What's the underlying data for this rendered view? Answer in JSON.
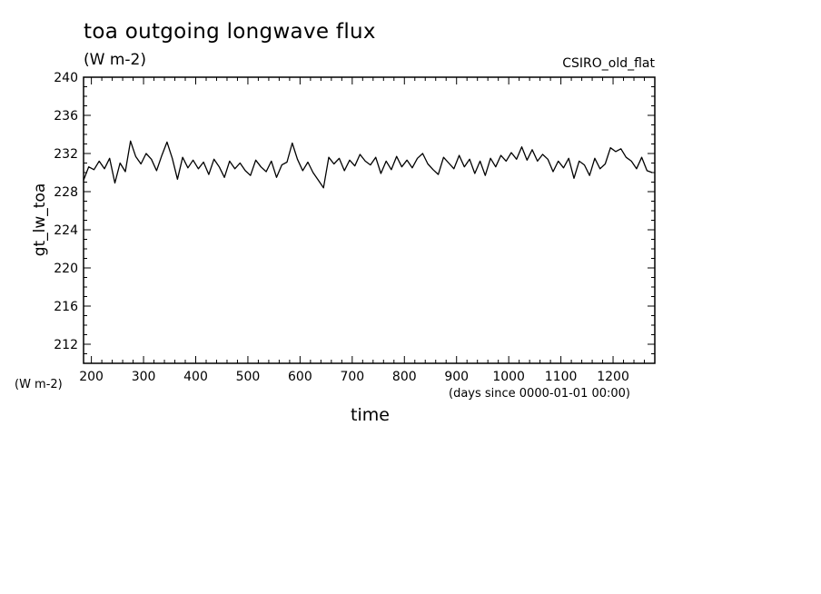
{
  "chart_data": {
    "type": "line",
    "title": "toa outgoing longwave flux",
    "subtitle": "(W m-2)",
    "model_label": "CSIRO_old_flat",
    "xlabel": "time",
    "xunits": "(days since 0000-01-01 00:00)",
    "ylabel": "gt_lw_toa",
    "yunits": "(W m-2)",
    "xlim": [
      185,
      1280
    ],
    "ylim": [
      210,
      240
    ],
    "xticks": [
      200,
      300,
      400,
      500,
      600,
      700,
      800,
      900,
      1000,
      1100,
      1200
    ],
    "xtick_labels": [
      "200",
      "300",
      "400",
      "500",
      "600",
      "700",
      "800",
      "900",
      "1000",
      "1100",
      "1200"
    ],
    "yticks": [
      212,
      216,
      220,
      224,
      228,
      232,
      236,
      240
    ],
    "ytick_labels": [
      "212",
      "216",
      "220",
      "224",
      "228",
      "232",
      "236",
      "240"
    ],
    "grid": false,
    "series": [
      {
        "color": "#000000",
        "x": [
          185,
          195,
          205,
          215,
          225,
          235,
          245,
          255,
          265,
          275,
          285,
          295,
          305,
          315,
          325,
          335,
          345,
          355,
          365,
          375,
          385,
          395,
          405,
          415,
          425,
          435,
          445,
          455,
          465,
          475,
          485,
          495,
          505,
          515,
          525,
          535,
          545,
          555,
          565,
          575,
          585,
          595,
          605,
          615,
          625,
          635,
          645,
          655,
          665,
          675,
          685,
          695,
          705,
          715,
          725,
          735,
          745,
          755,
          765,
          775,
          785,
          795,
          805,
          815,
          825,
          835,
          845,
          855,
          865,
          875,
          885,
          895,
          905,
          915,
          925,
          935,
          945,
          955,
          965,
          975,
          985,
          995,
          1005,
          1015,
          1025,
          1035,
          1045,
          1055,
          1065,
          1075,
          1085,
          1095,
          1105,
          1115,
          1125,
          1135,
          1145,
          1155,
          1165,
          1175,
          1185,
          1195,
          1205,
          1215,
          1225,
          1235,
          1245,
          1255,
          1265,
          1275
        ],
        "y": [
          229.2,
          230.6,
          230.3,
          231.2,
          230.4,
          231.5,
          228.9,
          231.0,
          230.1,
          233.3,
          231.7,
          230.9,
          232.0,
          231.4,
          230.2,
          231.8,
          233.2,
          231.5,
          229.3,
          231.6,
          230.5,
          231.3,
          230.4,
          231.1,
          229.8,
          231.4,
          230.6,
          229.5,
          231.2,
          230.4,
          231.0,
          230.2,
          229.7,
          231.3,
          230.6,
          230.1,
          231.2,
          229.5,
          230.8,
          231.1,
          233.1,
          231.4,
          230.2,
          231.1,
          230.0,
          229.2,
          228.4,
          231.6,
          230.9,
          231.5,
          230.2,
          231.3,
          230.7,
          231.9,
          231.2,
          230.8,
          231.6,
          229.9,
          231.2,
          230.3,
          231.7,
          230.6,
          231.3,
          230.5,
          231.5,
          232.0,
          230.9,
          230.3,
          229.8,
          231.6,
          231.0,
          230.4,
          231.8,
          230.6,
          231.4,
          229.9,
          231.2,
          229.7,
          231.5,
          230.6,
          231.8,
          231.2,
          232.1,
          231.4,
          232.7,
          231.3,
          232.4,
          231.2,
          231.9,
          231.4,
          230.1,
          231.2,
          230.5,
          231.5,
          229.4,
          231.2,
          230.8,
          229.7,
          231.5,
          230.4,
          230.9,
          232.6,
          232.2,
          232.5,
          231.6,
          231.2,
          230.4,
          231.6,
          230.2,
          230.0
        ]
      }
    ]
  }
}
